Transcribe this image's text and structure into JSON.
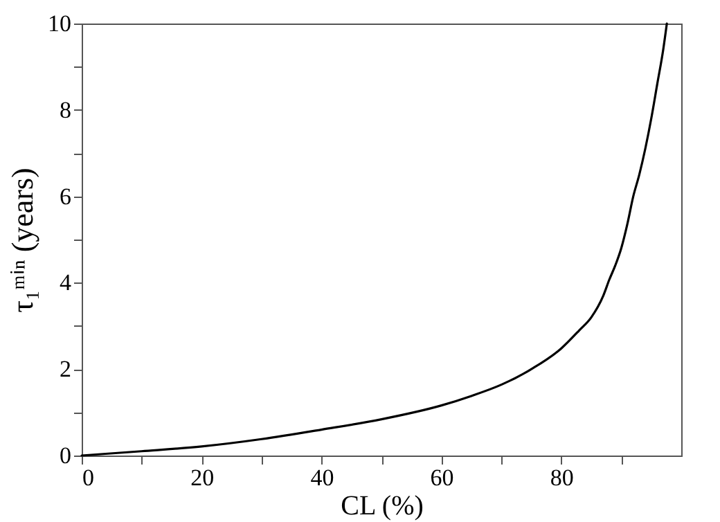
{
  "chart_data": {
    "type": "line",
    "xlabel": "CL (%)",
    "ylabel": "τ₁ᵐⁱⁿ (years)",
    "x": [
      0,
      10,
      20,
      30,
      40,
      50,
      60,
      65,
      70,
      75,
      80,
      83,
      85,
      87,
      88,
      89,
      90,
      91,
      92,
      93,
      94,
      95,
      96,
      97,
      97.6
    ],
    "series": [
      {
        "color": "#000000",
        "values": [
          0,
          0.1,
          0.21,
          0.38,
          0.6,
          0.84,
          1.16,
          1.38,
          1.64,
          2.0,
          2.48,
          2.9,
          3.2,
          3.7,
          4.07,
          4.4,
          4.8,
          5.35,
          6.0,
          6.5,
          7.1,
          7.8,
          8.6,
          9.4,
          10
        ]
      }
    ],
    "xlim": [
      0,
      100
    ],
    "ylim": [
      0,
      10
    ],
    "xticks": [
      0,
      {
        "value": 10,
        "label": null
      },
      20,
      {
        "value": 30,
        "label": null
      },
      40,
      {
        "value": 50,
        "label": null
      },
      60,
      {
        "value": 70,
        "label": null
      },
      80,
      {
        "value": 90,
        "label": null
      }
    ],
    "yticks": [
      0,
      {
        "value": 1,
        "label": null
      },
      2,
      {
        "value": 3,
        "label": null
      },
      4,
      {
        "value": 5,
        "label": null
      },
      6,
      {
        "value": 7,
        "label": null
      },
      8,
      {
        "value": 9,
        "label": null
      },
      10
    ],
    "grid": false,
    "marker": "none",
    "line_style": "solid"
  }
}
